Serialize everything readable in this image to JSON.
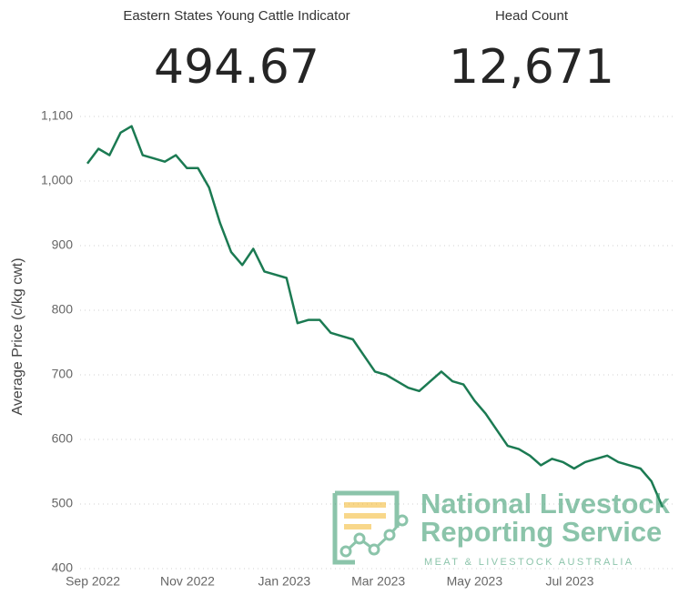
{
  "cards": [
    {
      "label": "Eastern States Young Cattle Indicator",
      "value": "494.67"
    },
    {
      "label": "Head Count",
      "value": "12,671"
    }
  ],
  "chart_data": {
    "type": "line",
    "ylabel": "Average Price (c/kg cwt)",
    "color": "#1b7a52",
    "values": [
      1027,
      1050,
      1040,
      1075,
      1085,
      1040,
      1035,
      1030,
      1040,
      1020,
      1020,
      990,
      935,
      890,
      870,
      895,
      860,
      855,
      850,
      780,
      785,
      785,
      765,
      760,
      755,
      730,
      705,
      700,
      690,
      680,
      675,
      690,
      705,
      690,
      685,
      660,
      640,
      615,
      590,
      585,
      575,
      560,
      570,
      565,
      555,
      565,
      570,
      575,
      565,
      560,
      555,
      535,
      495
    ],
    "xlim": [
      0,
      52
    ],
    "xticks": [
      {
        "value": 0.5,
        "label": "Sep 2022"
      },
      {
        "value": 9.05,
        "label": "Nov 2022"
      },
      {
        "value": 17.8,
        "label": "Jan 2023"
      },
      {
        "value": 26.3,
        "label": "Mar 2023"
      },
      {
        "value": 35,
        "label": "May 2023"
      },
      {
        "value": 43.6,
        "label": "Jul 2023"
      }
    ],
    "ylim": [
      400,
      1100
    ],
    "yticks": [
      400,
      500,
      600,
      700,
      800,
      900,
      {
        "value": 1000,
        "label": "1,000"
      },
      {
        "value": 1100,
        "label": "1,100"
      }
    ],
    "grid": true
  },
  "watermark": {
    "line1": "National Livestock",
    "line2": "Reporting Service",
    "line3": "MEAT & LIVESTOCK AUSTRALIA"
  }
}
